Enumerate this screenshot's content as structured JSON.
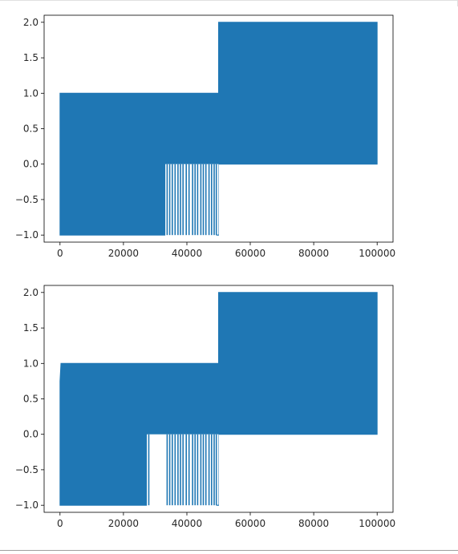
{
  "colors": {
    "series": "#1f77b4",
    "axes": "#000000",
    "text": "#262626",
    "background": "#ffffff"
  },
  "chart_data": [
    {
      "type": "line",
      "title": "",
      "xlabel": "",
      "ylabel": "",
      "grid": false,
      "xlim": [
        -5000,
        105000
      ],
      "ylim": [
        -1.1,
        2.1
      ],
      "xticks": [
        0,
        20000,
        40000,
        60000,
        80000,
        100000
      ],
      "xtick_labels": [
        "0",
        "20000",
        "40000",
        "60000",
        "80000",
        "100000"
      ],
      "yticks": [
        -1.0,
        -0.5,
        0.0,
        0.5,
        1.0,
        1.5,
        2.0
      ],
      "ytick_labels": [
        "−1.0",
        "−0.5",
        "0.0",
        "0.5",
        "1.0",
        "1.5",
        "2.0"
      ],
      "series": [
        {
          "segments": [
            {
              "x": [
                0,
                50000
              ],
              "y": [
                -1,
                1
              ]
            },
            {
              "x": [
                50000,
                100000
              ],
              "y": [
                0,
                2
              ]
            }
          ],
          "points": [
            [
              0,
              -1
            ],
            [
              0,
              1
            ],
            [
              50000,
              1
            ],
            [
              50000,
              2
            ],
            [
              100000,
              2
            ],
            [
              100000,
              0
            ],
            [
              50000,
              0
            ],
            [
              50000,
              -1
            ],
            [
              0,
              -1
            ]
          ],
          "spikes_x": [
            33800,
            34600,
            35400,
            36300,
            37200,
            38000,
            38800,
            39800,
            40700,
            41800,
            42600,
            43400,
            44400,
            45200,
            46000,
            47000,
            47800,
            48600,
            49300
          ],
          "spikes_y": [
            0,
            -1
          ]
        }
      ]
    },
    {
      "type": "line",
      "title": "",
      "xlabel": "",
      "ylabel": "",
      "grid": false,
      "xlim": [
        -5000,
        105000
      ],
      "ylim": [
        -1.1,
        2.1
      ],
      "xticks": [
        0,
        20000,
        40000,
        60000,
        80000,
        100000
      ],
      "xtick_labels": [
        "0",
        "20000",
        "40000",
        "60000",
        "80000",
        "100000"
      ],
      "yticks": [
        -1.0,
        -0.5,
        0.0,
        0.5,
        1.0,
        1.5,
        2.0
      ],
      "ytick_labels": [
        "−1.0",
        "−0.5",
        "0.0",
        "0.5",
        "1.0",
        "1.5",
        "2.0"
      ],
      "series": [
        {
          "segments": [
            {
              "x": [
                0,
                50000
              ],
              "y": [
                -1,
                1
              ]
            },
            {
              "x": [
                50000,
                100000
              ],
              "y": [
                0,
                2
              ]
            }
          ],
          "points": [
            [
              0,
              -1
            ],
            [
              0,
              0.75
            ],
            [
              300,
              1
            ],
            [
              50000,
              1
            ],
            [
              50000,
              2
            ],
            [
              100000,
              2
            ],
            [
              100000,
              0
            ],
            [
              50000,
              0
            ],
            [
              50000,
              -1
            ],
            [
              0,
              -1
            ]
          ],
          "spikes_x": [
            28000,
            33800,
            34600,
            35400,
            36300,
            37200,
            38000,
            38800,
            39800,
            40700,
            41800,
            42600,
            43400,
            44400,
            45200,
            46000,
            47000,
            47800,
            48600,
            49300
          ],
          "spikes_y": [
            0,
            -1
          ]
        }
      ]
    }
  ]
}
